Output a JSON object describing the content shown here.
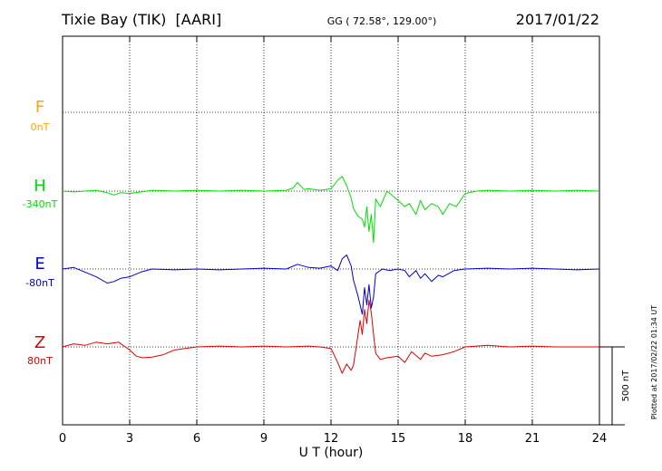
{
  "header": {
    "station": "Tixie Bay (TIK)  [AARI]",
    "coords": "GG ( 72.58°, 129.00°)",
    "date": "2017/01/22"
  },
  "footer": {
    "plotted": "Plotted at 2017/02/22 01:34 UT"
  },
  "chart_data": {
    "type": "line",
    "title": "Tixie Bay (TIK)  [AARI]",
    "xlabel": "U T (hour)",
    "ylabel": "",
    "xlim": [
      0,
      24
    ],
    "x_ticks": [
      0,
      3,
      6,
      9,
      12,
      15,
      18,
      21,
      24
    ],
    "tick_labels": [
      "0",
      "3",
      "6",
      "9",
      "12",
      "15",
      "18",
      "21",
      "24"
    ],
    "grid": true,
    "scale_bar": {
      "label": "500 nT",
      "value_nT": 500
    },
    "colors": {
      "F": "#ffa500",
      "H": "#00e000",
      "E": "#0000cc",
      "Z": "#e00000"
    },
    "series": [
      {
        "name": "F",
        "baseline_label": "0nT",
        "color": "#ffa500",
        "x": [],
        "y": []
      },
      {
        "name": "H",
        "baseline_label": "-340nT",
        "color": "#00e000",
        "x": [
          0,
          0.5,
          1,
          1.5,
          2,
          2.3,
          2.6,
          3,
          3.5,
          4,
          5,
          6,
          7,
          8,
          9,
          10,
          10.3,
          10.5,
          10.8,
          11,
          11.5,
          12,
          12.3,
          12.5,
          12.7,
          12.9,
          13,
          13.2,
          13.4,
          13.5,
          13.6,
          13.7,
          13.8,
          13.9,
          14,
          14.2,
          14.5,
          15,
          15.3,
          15.5,
          15.8,
          16,
          16.2,
          16.5,
          16.8,
          17,
          17.3,
          17.6,
          18,
          18.5,
          19,
          20,
          21,
          22,
          23,
          24
        ],
        "y": [
          0,
          -5,
          0,
          5,
          -10,
          -25,
          -10,
          -15,
          -5,
          5,
          0,
          5,
          0,
          5,
          0,
          5,
          20,
          55,
          10,
          15,
          5,
          15,
          70,
          95,
          35,
          -45,
          -110,
          -160,
          -180,
          -230,
          -100,
          -260,
          -150,
          -330,
          -50,
          -100,
          0,
          -60,
          -100,
          -80,
          -150,
          -60,
          -120,
          -80,
          -100,
          -150,
          -80,
          -100,
          -15,
          0,
          5,
          0,
          5,
          0,
          5,
          0
        ]
      },
      {
        "name": "E",
        "baseline_label": "-80nT",
        "color": "#0000cc",
        "x": [
          0,
          0.5,
          1,
          1.5,
          2,
          2.3,
          2.6,
          3,
          3.5,
          4,
          5,
          6,
          7,
          8,
          9,
          10,
          10.5,
          11,
          11.5,
          12,
          12.3,
          12.5,
          12.7,
          12.9,
          13,
          13.2,
          13.4,
          13.5,
          13.6,
          13.7,
          13.8,
          13.9,
          14,
          14.3,
          14.6,
          15,
          15.3,
          15.5,
          15.8,
          16,
          16.2,
          16.5,
          16.8,
          17,
          17.5,
          18,
          19,
          20,
          21,
          22,
          23,
          24
        ],
        "y": [
          0,
          10,
          -20,
          -50,
          -90,
          -80,
          -60,
          -50,
          -20,
          0,
          -5,
          0,
          -5,
          0,
          5,
          0,
          30,
          10,
          5,
          20,
          -10,
          65,
          90,
          20,
          -70,
          -170,
          -290,
          -120,
          -230,
          -100,
          -250,
          -180,
          -30,
          0,
          -10,
          0,
          -10,
          -50,
          -10,
          -60,
          -30,
          -80,
          -40,
          -50,
          -10,
          0,
          5,
          0,
          5,
          0,
          -5,
          0
        ]
      },
      {
        "name": "Z",
        "baseline_label": "80nT",
        "color": "#e00000",
        "x": [
          0,
          0.5,
          1,
          1.5,
          2,
          2.5,
          3,
          3.3,
          3.6,
          4,
          4.5,
          5,
          6,
          7,
          8,
          9,
          10,
          11,
          11.5,
          12,
          12.3,
          12.5,
          12.7,
          12.9,
          13,
          13.2,
          13.3,
          13.4,
          13.5,
          13.6,
          13.7,
          13.8,
          13.9,
          14,
          14.2,
          14.5,
          15,
          15.3,
          15.6,
          16,
          16.2,
          16.5,
          17,
          17.5,
          18,
          19,
          20,
          21,
          22,
          23,
          24
        ],
        "y": [
          0,
          20,
          10,
          30,
          20,
          30,
          -20,
          -60,
          -70,
          -65,
          -50,
          -20,
          0,
          5,
          0,
          5,
          0,
          5,
          0,
          -10,
          -100,
          -170,
          -110,
          -150,
          -120,
          70,
          170,
          80,
          240,
          150,
          300,
          220,
          80,
          -40,
          -80,
          -70,
          -60,
          -100,
          -30,
          -80,
          -40,
          -60,
          -50,
          -30,
          0,
          10,
          0,
          5,
          0,
          0,
          0
        ]
      }
    ]
  }
}
